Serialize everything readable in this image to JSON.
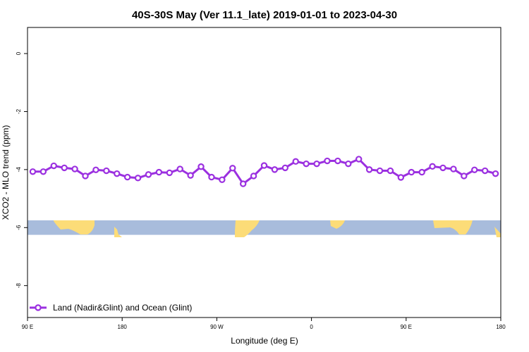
{
  "chart_data": {
    "type": "line",
    "title": "40S-30S May (Ver 11.1_late)   2019-01-01 to 2023-04-30",
    "xlabel": "Longitude (deg E)",
    "ylabel": "XCO2 - MLO trend (ppm)",
    "x_ticks": [
      {
        "value": 90,
        "label": "90 E"
      },
      {
        "value": 180,
        "label": "180"
      },
      {
        "value": 270,
        "label": "90 W"
      },
      {
        "value": 360,
        "label": "0"
      },
      {
        "value": 450,
        "label": "90 E"
      },
      {
        "value": 540,
        "label": "180"
      }
    ],
    "y_ticks": [
      0,
      -2,
      -4,
      -6,
      -8
    ],
    "xlim": [
      90,
      540
    ],
    "ylim": [
      -9.1,
      0.9
    ],
    "grid": false,
    "series": [
      {
        "name": "Land (Nadir&Glint) and Ocean (Glint)",
        "color": "#9b30e0",
        "x": [
          95,
          105,
          115,
          125,
          135,
          145,
          155,
          165,
          175,
          185,
          195,
          205,
          215,
          225,
          235,
          245,
          255,
          265,
          275,
          285,
          295,
          305,
          315,
          325,
          335,
          345,
          355,
          365,
          375,
          385,
          395,
          405,
          415,
          425,
          435,
          445,
          455,
          465,
          475,
          485,
          495,
          505,
          515,
          525,
          535
        ],
        "y": [
          -4.07,
          -4.07,
          -3.87,
          -3.94,
          -3.98,
          -4.22,
          -4.01,
          -4.04,
          -4.14,
          -4.26,
          -4.29,
          -4.17,
          -4.09,
          -4.11,
          -3.98,
          -4.2,
          -3.9,
          -4.26,
          -4.35,
          -3.95,
          -4.49,
          -4.22,
          -3.86,
          -4.0,
          -3.94,
          -3.72,
          -3.8,
          -3.8,
          -3.7,
          -3.7,
          -3.8,
          -3.64,
          -4.0,
          -4.04,
          -4.04,
          -4.27,
          -4.09,
          -4.09,
          -3.89,
          -3.94,
          -3.98,
          -4.22,
          -4.01,
          -4.04,
          -4.14
        ]
      }
    ],
    "legend": {
      "position": "bottom-left",
      "label": "Land (Nadir&Glint) and Ocean (Glint)"
    },
    "map_strip": {
      "ocean_color": "#a8bcdc",
      "land_color": "#fcdc78",
      "y_range": [
        -5.75,
        -6.25
      ]
    }
  }
}
